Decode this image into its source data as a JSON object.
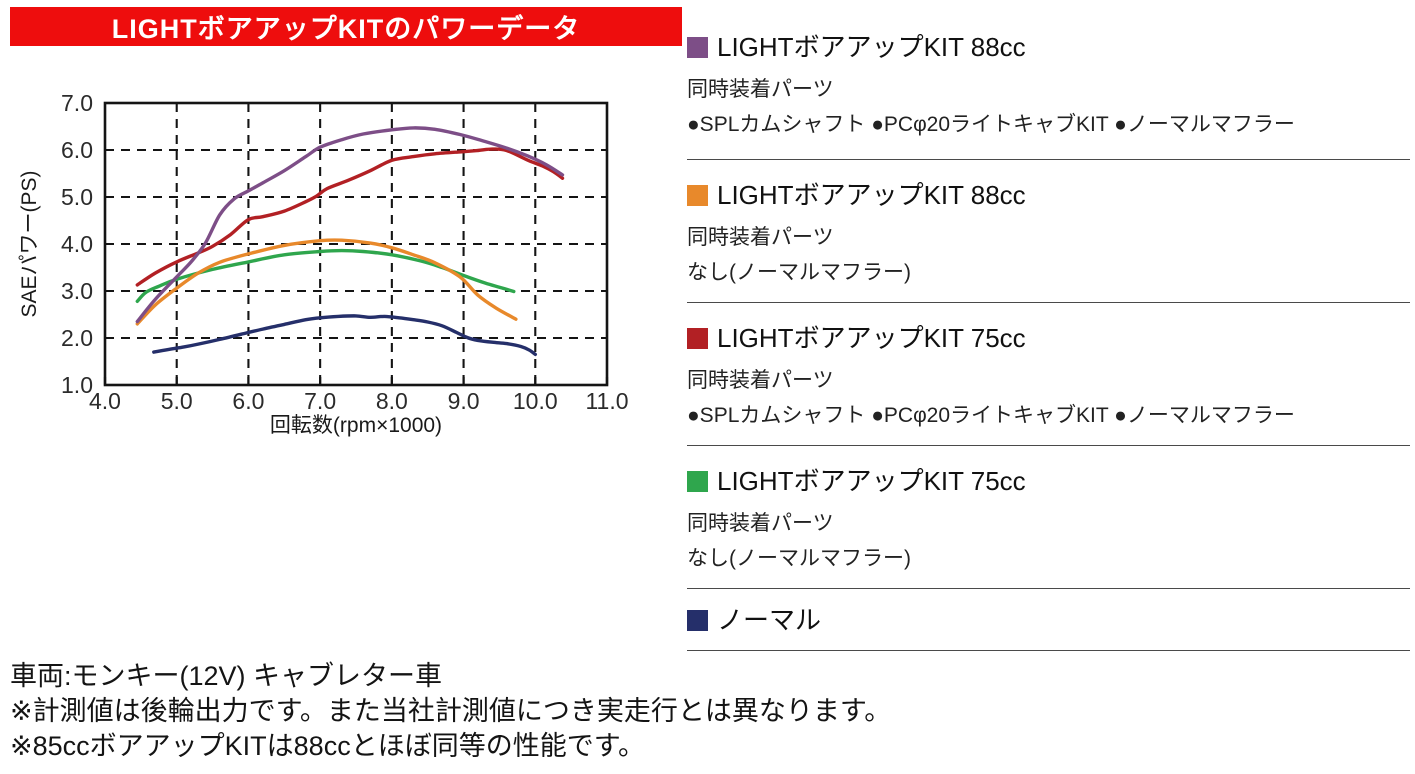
{
  "title": {
    "text": "LIGHTボアアップKITのパワーデータ",
    "bg_color": "#EE0D0D",
    "text_color": "#FFFFFF"
  },
  "chart_data": {
    "type": "line",
    "title": "",
    "xlabel": "回転数(rpm×1000)",
    "ylabel": "SAEパワー(PS)",
    "xlim": [
      4.0,
      11.0
    ],
    "ylim": [
      1.0,
      7.0
    ],
    "x_ticks": [
      "4.0",
      "5.0",
      "6.0",
      "7.0",
      "8.0",
      "9.0",
      "10.0",
      "11.0"
    ],
    "y_ticks": [
      "1.0",
      "2.0",
      "3.0",
      "4.0",
      "5.0",
      "6.0",
      "7.0"
    ],
    "grid": "dashed",
    "legend_position": "right",
    "series": [
      {
        "name": "ノーマル",
        "color": "#252F6A",
        "points": [
          [
            4.68,
            1.7
          ],
          [
            4.9,
            1.76
          ],
          [
            5.1,
            1.81
          ],
          [
            5.3,
            1.87
          ],
          [
            5.6,
            1.97
          ],
          [
            5.9,
            2.08
          ],
          [
            6.2,
            2.19
          ],
          [
            6.5,
            2.29
          ],
          [
            6.8,
            2.39
          ],
          [
            7.0,
            2.43
          ],
          [
            7.25,
            2.46
          ],
          [
            7.5,
            2.47
          ],
          [
            7.7,
            2.44
          ],
          [
            7.9,
            2.46
          ],
          [
            8.1,
            2.43
          ],
          [
            8.3,
            2.39
          ],
          [
            8.5,
            2.34
          ],
          [
            8.7,
            2.26
          ],
          [
            8.9,
            2.12
          ],
          [
            9.05,
            2.01
          ],
          [
            9.2,
            1.95
          ],
          [
            9.4,
            1.91
          ],
          [
            9.6,
            1.88
          ],
          [
            9.8,
            1.82
          ],
          [
            9.92,
            1.74
          ],
          [
            10.0,
            1.65
          ]
        ]
      },
      {
        "name": "LIGHTボアアップKIT 75cc(同時装着パーツなし)",
        "color": "#2FA64D",
        "points": [
          [
            4.45,
            2.78
          ],
          [
            4.57,
            2.97
          ],
          [
            4.75,
            3.1
          ],
          [
            5.0,
            3.25
          ],
          [
            5.5,
            3.46
          ],
          [
            6.0,
            3.62
          ],
          [
            6.5,
            3.77
          ],
          [
            7.0,
            3.84
          ],
          [
            7.3,
            3.86
          ],
          [
            7.6,
            3.84
          ],
          [
            8.0,
            3.77
          ],
          [
            8.4,
            3.64
          ],
          [
            8.7,
            3.5
          ],
          [
            9.0,
            3.33
          ],
          [
            9.3,
            3.17
          ],
          [
            9.5,
            3.08
          ],
          [
            9.7,
            2.99
          ]
        ]
      },
      {
        "name": "LIGHTボアアップKIT 88cc(同時装着パーツなし)",
        "color": "#E8892B",
        "points": [
          [
            4.45,
            2.3
          ],
          [
            4.7,
            2.7
          ],
          [
            5.0,
            3.06
          ],
          [
            5.3,
            3.38
          ],
          [
            5.6,
            3.61
          ],
          [
            6.0,
            3.79
          ],
          [
            6.5,
            3.97
          ],
          [
            7.0,
            4.07
          ],
          [
            7.3,
            4.08
          ],
          [
            7.7,
            4.02
          ],
          [
            8.0,
            3.92
          ],
          [
            8.3,
            3.77
          ],
          [
            8.6,
            3.6
          ],
          [
            8.95,
            3.3
          ],
          [
            9.2,
            2.91
          ],
          [
            9.45,
            2.64
          ],
          [
            9.73,
            2.4
          ]
        ]
      },
      {
        "name": "LIGHTボアアップKIT 75cc(SPLカムシャフト・PCφ20ライトキャブKIT・ノーマルマフラー)",
        "color": "#B22024",
        "points": [
          [
            4.45,
            3.13
          ],
          [
            4.7,
            3.38
          ],
          [
            5.0,
            3.62
          ],
          [
            5.3,
            3.81
          ],
          [
            5.5,
            3.95
          ],
          [
            5.75,
            4.2
          ],
          [
            6.0,
            4.52
          ],
          [
            6.2,
            4.58
          ],
          [
            6.5,
            4.7
          ],
          [
            6.8,
            4.9
          ],
          [
            6.95,
            5.02
          ],
          [
            7.1,
            5.18
          ],
          [
            7.4,
            5.36
          ],
          [
            7.7,
            5.56
          ],
          [
            8.0,
            5.78
          ],
          [
            8.3,
            5.86
          ],
          [
            8.6,
            5.92
          ],
          [
            8.95,
            5.96
          ],
          [
            9.2,
            5.99
          ],
          [
            9.4,
            6.02
          ],
          [
            9.6,
            5.99
          ],
          [
            9.9,
            5.78
          ],
          [
            10.1,
            5.66
          ],
          [
            10.25,
            5.54
          ],
          [
            10.38,
            5.4
          ]
        ]
      },
      {
        "name": "LIGHTボアアップKIT 88cc(SPLカムシャフト・PCφ20ライトキャブKIT・ノーマルマフラー)",
        "color": "#7D4E87",
        "points": [
          [
            4.45,
            2.35
          ],
          [
            4.7,
            2.82
          ],
          [
            5.0,
            3.3
          ],
          [
            5.2,
            3.62
          ],
          [
            5.4,
            4.02
          ],
          [
            5.6,
            4.62
          ],
          [
            5.8,
            4.96
          ],
          [
            6.0,
            5.13
          ],
          [
            6.2,
            5.3
          ],
          [
            6.5,
            5.56
          ],
          [
            6.8,
            5.86
          ],
          [
            7.0,
            6.06
          ],
          [
            7.3,
            6.22
          ],
          [
            7.6,
            6.34
          ],
          [
            8.0,
            6.43
          ],
          [
            8.3,
            6.47
          ],
          [
            8.6,
            6.44
          ],
          [
            8.95,
            6.33
          ],
          [
            9.3,
            6.18
          ],
          [
            9.6,
            6.04
          ],
          [
            9.9,
            5.87
          ],
          [
            10.15,
            5.69
          ],
          [
            10.38,
            5.47
          ]
        ]
      }
    ]
  },
  "legend": {
    "items": [
      {
        "swatch_color": "#7D4E87",
        "title": "LIGHTボアアップKIT 88cc",
        "sub_label": "同時装着パーツ",
        "parts": "●SPLカムシャフト ●PCφ20ライトキャブKIT ●ノーマルマフラー"
      },
      {
        "swatch_color": "#E8892B",
        "title": "LIGHTボアアップKIT 88cc",
        "sub_label": "同時装着パーツ",
        "parts": "なし(ノーマルマフラー)"
      },
      {
        "swatch_color": "#B22024",
        "title": "LIGHTボアアップKIT 75cc",
        "sub_label": "同時装着パーツ",
        "parts": "●SPLカムシャフト ●PCφ20ライトキャブKIT ●ノーマルマフラー"
      },
      {
        "swatch_color": "#2FA64D",
        "title": "LIGHTボアアップKIT 75cc",
        "sub_label": "同時装着パーツ",
        "parts": "なし(ノーマルマフラー)"
      },
      {
        "swatch_color": "#252F6A",
        "title": "ノーマル",
        "sub_label": "",
        "parts": ""
      }
    ]
  },
  "notes": [
    "車両:モンキー(12V) キャブレター車",
    "※計測値は後輪出力です。また当社計測値につき実走行とは異なります。",
    "※85ccボアアップKITは88ccとほぼ同等の性能です。"
  ]
}
